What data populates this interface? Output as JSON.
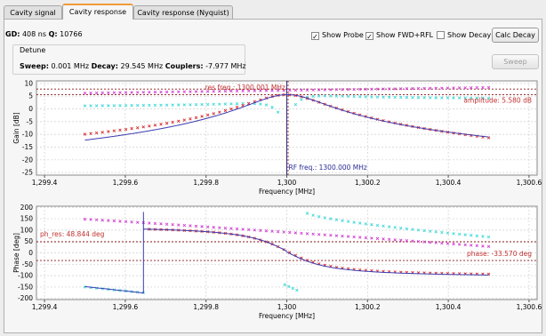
{
  "tabs": [
    {
      "label": "Cavity signal",
      "active": false
    },
    {
      "label": "Cavity response",
      "active": true
    },
    {
      "label": "Cavity response (Nyquist)",
      "active": false
    }
  ],
  "info": {
    "gd_label": "GD:",
    "gd_value": "408 ns",
    "q_label": "Q:",
    "q_value": "10766"
  },
  "detune": {
    "title": "Detune",
    "sweep_label": "Sweep:",
    "sweep_value": "0.001 MHz",
    "decay_label": "Decay:",
    "decay_value": "29.545 MHz",
    "couplers_label": "Couplers:",
    "couplers_value": "-7.977 MHz"
  },
  "controls": {
    "show_probe": {
      "label": "Show Probe",
      "checked": true
    },
    "show_fwd_rfl": {
      "label": "Show FWD+RFL",
      "checked": true
    },
    "show_decay": {
      "label": "Show Decay",
      "checked": false
    },
    "calc_decay_label": "Calc Decay",
    "sweep_label": "Sweep",
    "check_mark": "✓"
  },
  "gain_plot": {
    "ylabel": "Gain [dB]",
    "xlabel": "Frequency [MHz]",
    "xlim": [
      1299.38,
      1300.62
    ],
    "ylim": [
      -26,
      11
    ],
    "yticks": [
      10,
      5,
      0,
      -5,
      -10,
      -15,
      -20,
      -25
    ],
    "xticks": [
      1299.4,
      1299.6,
      1299.8,
      1300.0,
      1300.2,
      1300.4,
      1300.6
    ],
    "xtick_labels": [
      "1,299.4",
      "1,299.6",
      "1,299.8",
      "1,300",
      "1,300.2",
      "1,300.4",
      "1,300.6"
    ],
    "res_freq_label": "res freq.: 1300.001 MHz",
    "rf_freq_label": "RF freq.: 1300.000 MHz",
    "amplitude_label": "amplitude: 5.580 dB",
    "amplitude_db": 5.58,
    "res_freq": 1300.001,
    "rf_freq": 1300.0
  },
  "phase_plot": {
    "ylabel": "Phase [deg]",
    "xlabel": "Frequency [MHz]",
    "xlim": [
      1299.38,
      1300.62
    ],
    "ylim": [
      -205,
      205
    ],
    "yticks": [
      200,
      150,
      100,
      50,
      0,
      -50,
      -100,
      -150,
      -200
    ],
    "xticks": [
      1299.4,
      1299.6,
      1299.8,
      1300.0,
      1300.2,
      1300.4,
      1300.6
    ],
    "xtick_labels": [
      "1,299.4",
      "1,299.6",
      "1,299.8",
      "1,300",
      "1,300.2",
      "1,300.4",
      "1,300.6"
    ],
    "ph_res_label": "ph_res: 48.844 deg",
    "ph_res_deg": 48.844,
    "phase_label": "phase: -33.570 deg",
    "phase_deg": -33.57
  },
  "colors": {
    "probe": "#3b3bb0",
    "fwd": "#d83030",
    "rfl": "#d040d0",
    "decay": "#40d8d8",
    "marker_line": "#8b1a1a",
    "rf_line": "#1a1a7a",
    "label_red": "#c03030",
    "label_blue": "#2a2a9a",
    "grid": "#cfcfcf",
    "tab_accent": "#f19a3b"
  }
}
